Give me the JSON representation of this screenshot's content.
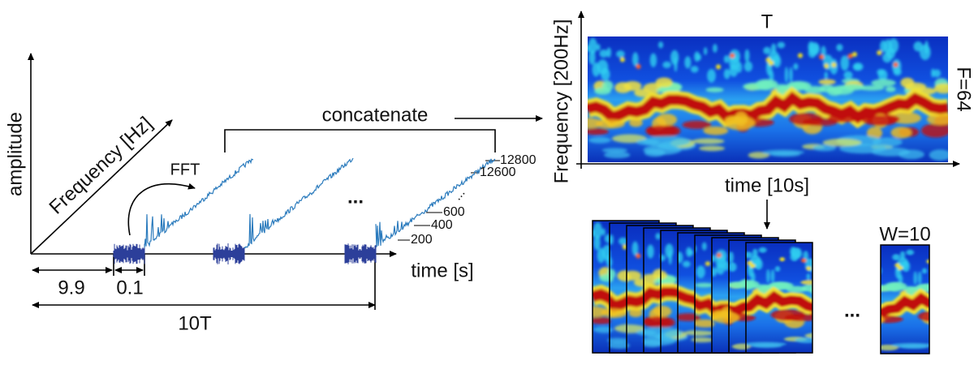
{
  "left": {
    "y_axis_label": "amplitude",
    "diagonal_axis_label": "Frequency [Hz]",
    "fft_label": "FFT",
    "concatenate_label": "concatenate",
    "ellipsis": "...",
    "freq_labels": [
      "12800",
      "12600",
      "...",
      "600",
      "400",
      "200"
    ],
    "x_axis_label": "time [s]",
    "interval_labels": [
      "9.9",
      "0.1"
    ],
    "period_label": "10T"
  },
  "right": {
    "top_label": "T",
    "y_axis_label": "Frequency [200Hz]",
    "side_label": "F=64",
    "x_axis_label": "time [10s]",
    "ellipsis": "...",
    "window_label": "W=10"
  }
}
